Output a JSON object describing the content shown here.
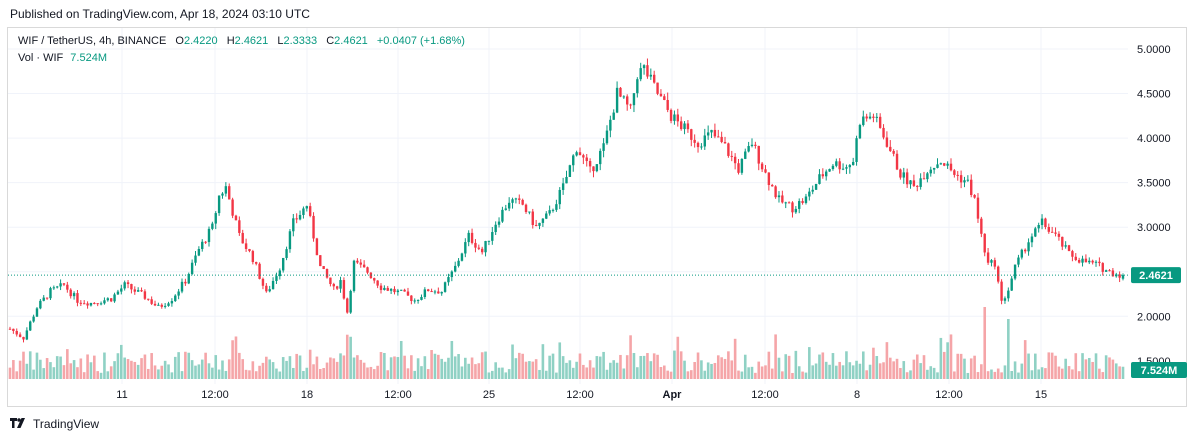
{
  "header": {
    "published": "Published on TradingView.com, Apr 18, 2024 03:10 UTC"
  },
  "legend": {
    "symbol": "WIF / TetherUS, 4h, BINANCE",
    "o_label": "O",
    "o_value": "2.4220",
    "h_label": "H",
    "h_value": "2.4621",
    "l_label": "L",
    "l_value": "2.3333",
    "c_label": "C",
    "c_value": "2.4621",
    "change": "+0.0407 (+1.68%)",
    "vol_label": "Vol · WIF",
    "vol_value": "7.524M"
  },
  "footer": {
    "brand": "TradingView"
  },
  "colors": {
    "up": "#089981",
    "down": "#f23645",
    "vol_up": "#8fd1c4",
    "vol_down": "#f5a5a8",
    "grid": "#f0f3fa"
  },
  "chart_data": {
    "type": "candlestick",
    "interval": "4h",
    "y_ticks": [
      "5.0000",
      "4.5000",
      "4.0000",
      "3.5000",
      "3.0000",
      "2.5000",
      "2.0000",
      "1.5000"
    ],
    "ylim": [
      1.4,
      5.2
    ],
    "x_ticks": [
      "11",
      "12:00",
      "18",
      "12:00",
      "25",
      "12:00",
      "Apr",
      "12:00",
      "8",
      "12:00",
      "15"
    ],
    "last_price": "2.4621",
    "last_volume": "7.524M",
    "close_path": [
      [
        0,
        1.86
      ],
      [
        4,
        1.76
      ],
      [
        8,
        2.1
      ],
      [
        12,
        2.28
      ],
      [
        16,
        2.35
      ],
      [
        20,
        2.18
      ],
      [
        24,
        2.15
      ],
      [
        30,
        2.2
      ],
      [
        34,
        2.35
      ],
      [
        40,
        2.22
      ],
      [
        44,
        2.1
      ],
      [
        48,
        2.2
      ],
      [
        52,
        2.4
      ],
      [
        56,
        2.75
      ],
      [
        60,
        3.0
      ],
      [
        62,
        3.35
      ],
      [
        64,
        3.45
      ],
      [
        68,
        2.9
      ],
      [
        72,
        2.65
      ],
      [
        76,
        2.25
      ],
      [
        80,
        2.55
      ],
      [
        84,
        3.05
      ],
      [
        88,
        3.25
      ],
      [
        92,
        2.55
      ],
      [
        96,
        2.3
      ],
      [
        98,
        2.4
      ],
      [
        100,
        2.05
      ],
      [
        102,
        2.6
      ],
      [
        106,
        2.5
      ],
      [
        110,
        2.33
      ],
      [
        116,
        2.26
      ],
      [
        120,
        2.18
      ],
      [
        124,
        2.3
      ],
      [
        128,
        2.28
      ],
      [
        132,
        2.55
      ],
      [
        136,
        2.9
      ],
      [
        140,
        2.72
      ],
      [
        144,
        3.05
      ],
      [
        148,
        3.3
      ],
      [
        152,
        3.25
      ],
      [
        156,
        3.0
      ],
      [
        160,
        3.15
      ],
      [
        164,
        3.45
      ],
      [
        168,
        3.9
      ],
      [
        172,
        3.62
      ],
      [
        176,
        3.9
      ],
      [
        180,
        4.5
      ],
      [
        184,
        4.3
      ],
      [
        186,
        4.72
      ],
      [
        188,
        4.78
      ],
      [
        192,
        4.5
      ],
      [
        196,
        4.25
      ],
      [
        200,
        4.1
      ],
      [
        204,
        3.95
      ],
      [
        208,
        4.05
      ],
      [
        212,
        3.9
      ],
      [
        216,
        3.65
      ],
      [
        220,
        3.95
      ],
      [
        224,
        3.6
      ],
      [
        228,
        3.3
      ],
      [
        232,
        3.22
      ],
      [
        236,
        3.32
      ],
      [
        240,
        3.55
      ],
      [
        244,
        3.72
      ],
      [
        248,
        3.68
      ],
      [
        250,
        3.75
      ],
      [
        252,
        4.2
      ],
      [
        256,
        4.25
      ],
      [
        260,
        3.95
      ],
      [
        264,
        3.6
      ],
      [
        268,
        3.45
      ],
      [
        272,
        3.65
      ],
      [
        276,
        3.75
      ],
      [
        280,
        3.6
      ],
      [
        284,
        3.5
      ],
      [
        286,
        3.3
      ],
      [
        288,
        2.9
      ],
      [
        290,
        2.58
      ],
      [
        292,
        2.6
      ],
      [
        294,
        2.15
      ],
      [
        296,
        2.3
      ],
      [
        298,
        2.55
      ],
      [
        302,
        2.85
      ],
      [
        306,
        3.05
      ],
      [
        310,
        2.9
      ],
      [
        314,
        2.7
      ],
      [
        318,
        2.62
      ],
      [
        322,
        2.58
      ],
      [
        326,
        2.5
      ],
      [
        330,
        2.46
      ]
    ],
    "candle_count": 331
  }
}
